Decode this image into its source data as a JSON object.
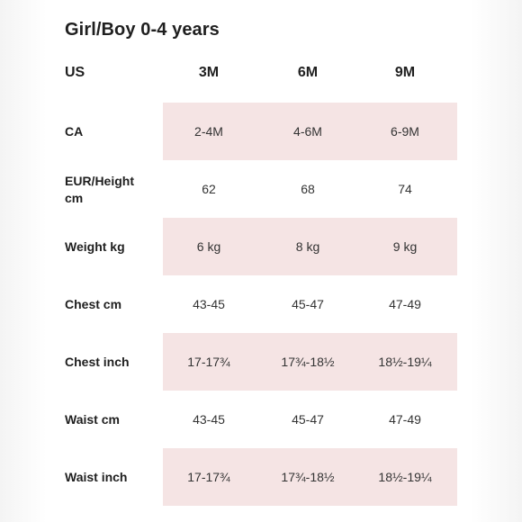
{
  "title": "Girl/Boy 0-4 years",
  "header": {
    "label": "US",
    "columns": [
      "3M",
      "6M",
      "9M"
    ]
  },
  "rows": [
    {
      "label": "CA",
      "values": [
        "2-4M",
        "4-6M",
        "6-9M"
      ],
      "shaded": true
    },
    {
      "label": "EUR/Height cm",
      "values": [
        "62",
        "68",
        "74"
      ],
      "shaded": false
    },
    {
      "label": "Weight kg",
      "values": [
        "6 kg",
        "8 kg",
        "9 kg"
      ],
      "shaded": true
    },
    {
      "label": "Chest cm",
      "values": [
        "43-45",
        "45-47",
        "47-49"
      ],
      "shaded": false
    },
    {
      "label": "Chest inch",
      "values": [
        "17-17¾",
        "17¾-18½",
        "18½-19¼"
      ],
      "shaded": true
    },
    {
      "label": "Waist cm",
      "values": [
        "43-45",
        "45-47",
        "47-49"
      ],
      "shaded": false
    },
    {
      "label": "Waist inch",
      "values": [
        "17-17¾",
        "17¾-18½",
        "18½-19¼"
      ],
      "shaded": true
    }
  ],
  "colors": {
    "shade": "#f5e4e4",
    "text": "#1f1f1f"
  }
}
